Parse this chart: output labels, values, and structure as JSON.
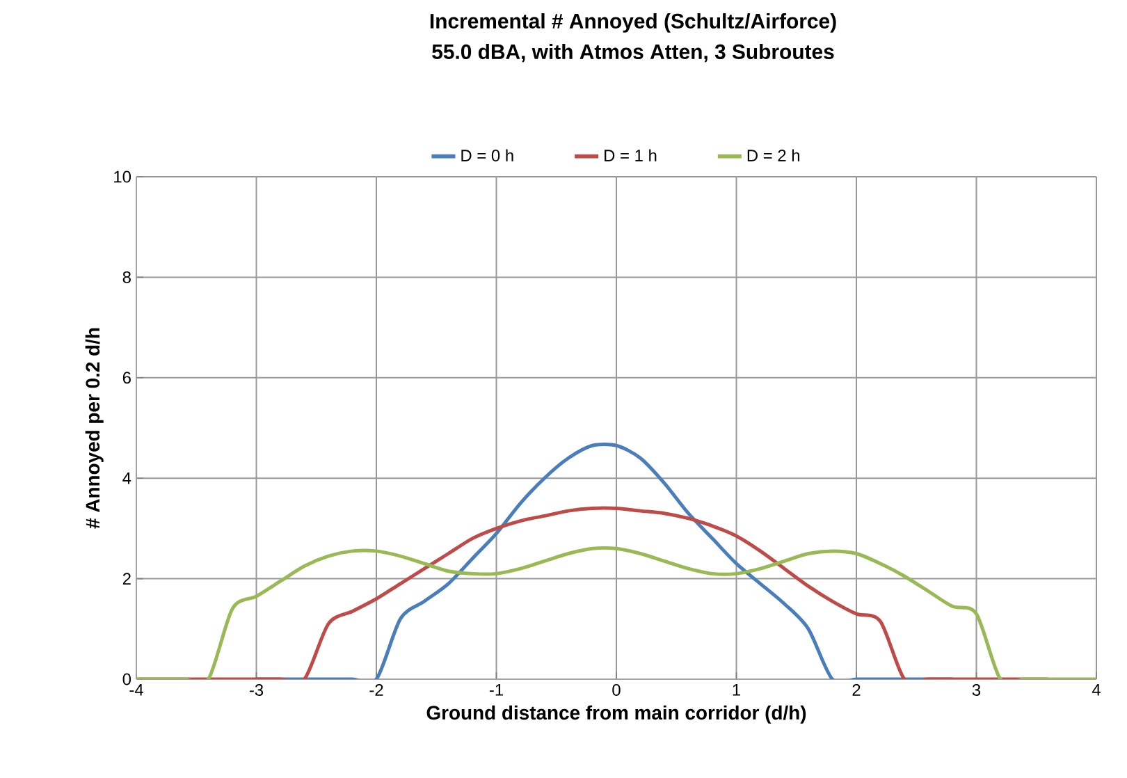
{
  "chart_data": {
    "type": "line",
    "title": "Incremental # Annoyed (Schultz/Airforce)",
    "subtitle": "55.0 dBA, with Atmos Atten, 3 Subroutes",
    "xlabel": "Ground distance from main corridor (d/h)",
    "ylabel": "# Annoyed per 0.2 d/h",
    "x": [
      -4,
      -3.8,
      -3.6,
      -3.4,
      -3.2,
      -3,
      -2.8,
      -2.6,
      -2.4,
      -2.2,
      -2,
      -1.8,
      -1.6,
      -1.4,
      -1.2,
      -1,
      -0.8,
      -0.6,
      -0.4,
      -0.2,
      0,
      0.2,
      0.4,
      0.6,
      0.8,
      1,
      1.2,
      1.4,
      1.6,
      1.8,
      2,
      2.2,
      2.4,
      2.6,
      2.8,
      3,
      3.2,
      3.4,
      3.6,
      3.8,
      4
    ],
    "series": [
      {
        "name": "D = 0 h",
        "color": "#4a7ebb",
        "values": [
          null,
          null,
          null,
          null,
          null,
          0,
          0,
          0,
          0,
          0,
          0,
          1.2,
          1.55,
          1.9,
          2.4,
          2.9,
          3.5,
          4.0,
          4.4,
          4.65,
          4.65,
          4.4,
          3.9,
          3.3,
          2.8,
          2.3,
          1.9,
          1.5,
          1.0,
          0,
          0,
          0,
          0,
          0,
          0,
          null,
          null,
          null,
          null,
          null,
          null
        ]
      },
      {
        "name": "D = 1 h",
        "color": "#be4b48",
        "values": [
          0,
          0,
          0,
          0,
          0,
          0,
          0,
          0,
          1.1,
          1.35,
          1.6,
          1.9,
          2.2,
          2.5,
          2.8,
          3.0,
          3.15,
          3.25,
          3.35,
          3.4,
          3.4,
          3.35,
          3.3,
          3.2,
          3.05,
          2.85,
          2.55,
          2.2,
          1.85,
          1.55,
          1.3,
          1.15,
          0,
          0,
          0,
          0,
          0,
          0,
          0,
          null,
          null
        ]
      },
      {
        "name": "D = 2 h",
        "color": "#98b954",
        "values": [
          0,
          0,
          0,
          0,
          1.4,
          1.65,
          1.95,
          2.25,
          2.45,
          2.55,
          2.55,
          2.45,
          2.3,
          2.15,
          2.1,
          2.1,
          2.2,
          2.35,
          2.5,
          2.6,
          2.6,
          2.5,
          2.35,
          2.2,
          2.1,
          2.1,
          2.2,
          2.35,
          2.5,
          2.55,
          2.5,
          2.3,
          2.05,
          1.75,
          1.45,
          1.3,
          0,
          0,
          0,
          0,
          0
        ]
      }
    ],
    "xlim": [
      -4,
      4
    ],
    "xticks": [
      -4,
      -3,
      -2,
      -1,
      0,
      1,
      2,
      3,
      4
    ],
    "ylim": [
      0,
      10
    ],
    "yticks": [
      0,
      2,
      4,
      6,
      8,
      10
    ],
    "grid": true,
    "legend": "top",
    "marker": "none",
    "line_style": "solid"
  }
}
